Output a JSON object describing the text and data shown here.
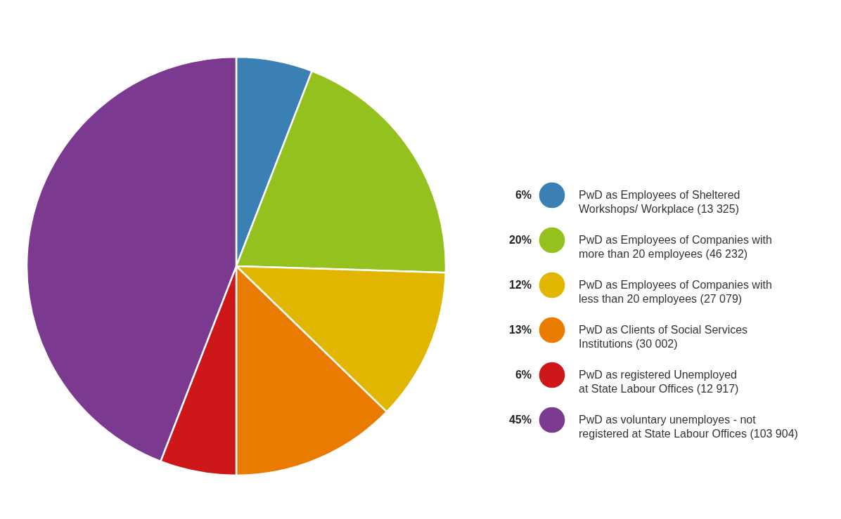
{
  "chart_data": {
    "type": "pie",
    "categories": [
      "PwD as Employees of Sheltered\nWorkshops/ Workplace (13 325)",
      "PwD as Employees of Companies with\nmore than 20 employees (46 232)",
      "PwD as Employees of Companies with\nless than 20 employees (27 079)",
      "PwD as Clients of Social Services\nInstitutions (30 002)",
      "PwD as registered Unemployed\nat State Labour Offices (12 917)",
      "PwD as voluntary unemployes - not\nregistered at State Labour Offices (103 904)"
    ],
    "values": [
      6,
      20,
      12,
      13,
      6,
      45
    ],
    "value_labels": [
      "6%",
      "20%",
      "12%",
      "13%",
      "6%",
      "45%"
    ],
    "colors": [
      "#3a80b5",
      "#95c11f",
      "#e2b600",
      "#e97c00",
      "#cd1719",
      "#7b3a8f"
    ],
    "legend": "right"
  }
}
